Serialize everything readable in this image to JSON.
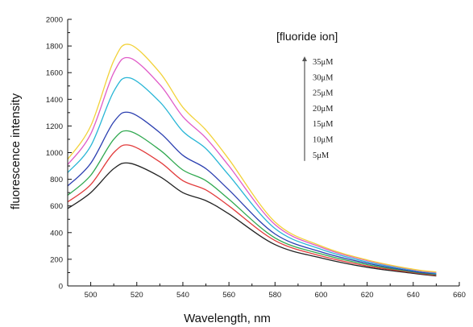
{
  "chart_data": {
    "type": "line",
    "title": "",
    "xlabel": "Wavelength, nm",
    "ylabel": "fluorescence intensity",
    "xlim": [
      490,
      660
    ],
    "ylim": [
      0,
      2000
    ],
    "xticks": [
      500,
      520,
      540,
      560,
      580,
      600,
      620,
      640,
      660
    ],
    "yticks": [
      0,
      200,
      400,
      600,
      800,
      1000,
      1200,
      1400,
      1600,
      1800,
      2000
    ],
    "grid": false,
    "legend": {
      "title": "[fluoride ion]",
      "placement": "top-right",
      "items": [
        "35μM",
        "30μM",
        "25μM",
        "20μM",
        "15μM",
        "10μM",
        "5μM"
      ]
    },
    "x": [
      490,
      500,
      510,
      517,
      530,
      540,
      550,
      560,
      580,
      600,
      620,
      640,
      650
    ],
    "series": [
      {
        "color": "#222222",
        "values": [
          580,
          700,
          880,
          920,
          820,
          700,
          640,
          540,
          310,
          210,
          140,
          95,
          75
        ]
      },
      {
        "color": "#e23b3b",
        "values": [
          630,
          760,
          1000,
          1055,
          930,
          790,
          720,
          600,
          340,
          225,
          150,
          100,
          80
        ]
      },
      {
        "color": "#2fa84f",
        "values": [
          680,
          830,
          1100,
          1160,
          1020,
          870,
          790,
          650,
          360,
          240,
          160,
          105,
          85
        ]
      },
      {
        "color": "#2b3fb0",
        "values": [
          750,
          920,
          1230,
          1300,
          1150,
          980,
          880,
          720,
          390,
          255,
          170,
          110,
          90
        ]
      },
      {
        "color": "#29b6d6",
        "values": [
          850,
          1050,
          1460,
          1560,
          1380,
          1160,
          1030,
          830,
          430,
          275,
          180,
          118,
          95
        ]
      },
      {
        "color": "#e05bc8",
        "values": [
          910,
          1140,
          1600,
          1710,
          1510,
          1270,
          1110,
          900,
          460,
          290,
          190,
          122,
          100
        ]
      },
      {
        "color": "#f2d23a",
        "values": [
          950,
          1200,
          1690,
          1810,
          1600,
          1340,
          1170,
          950,
          480,
          300,
          195,
          125,
          105
        ]
      }
    ]
  }
}
